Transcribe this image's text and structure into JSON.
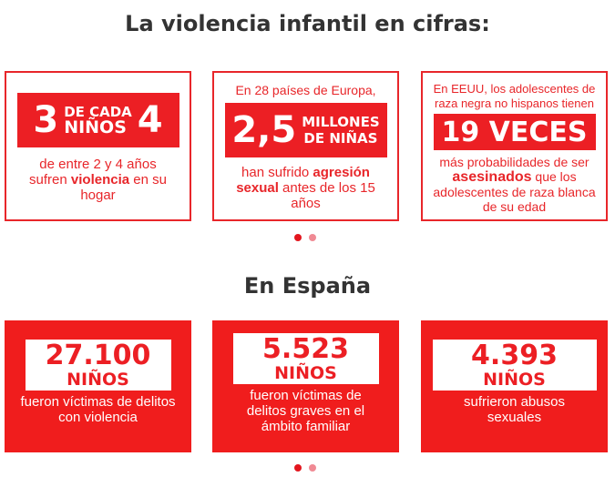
{
  "section1": {
    "title": "La violencia infantil en cifras:",
    "cards": [
      {
        "big1": "3",
        "small1": "DE CADA",
        "small2": "NIÑOS",
        "big2": "4",
        "text_pre": "de entre 2 y 4 años sufren ",
        "text_bold": "violencia",
        "text_post": " en su hogar"
      },
      {
        "intro": "En 28 países de Europa,",
        "big": "2,5",
        "small1": "MILLONES",
        "small2": "DE NIÑAS",
        "text_pre": "han sufrido ",
        "text_bold": "agresión sexual",
        "text_post": " antes de los 15 años"
      },
      {
        "intro": "En EEUU, los adolescentes de raza negra no hispanos tienen",
        "big": "19 VECES",
        "text_pre": "más probabilidades de ser ",
        "text_bold": "asesinados",
        "text_post": " que los adolescentes de raza blanca de su edad"
      }
    ]
  },
  "section2": {
    "title": "En España",
    "cards": [
      {
        "number": "27.100",
        "unit": "NIÑOS",
        "text": "fueron víctimas de delitos con violencia"
      },
      {
        "number": "5.523",
        "unit": "NIÑOS",
        "text": "fueron víctimas de delitos graves en el ámbito familiar"
      },
      {
        "number": "4.393",
        "unit": "NIÑOS",
        "text": "sufrieron abusos sexuales"
      }
    ]
  },
  "carousel": {
    "pages": 2,
    "active": 1,
    "active_color": "#e3161e",
    "inactive_color": "#f08a94"
  }
}
